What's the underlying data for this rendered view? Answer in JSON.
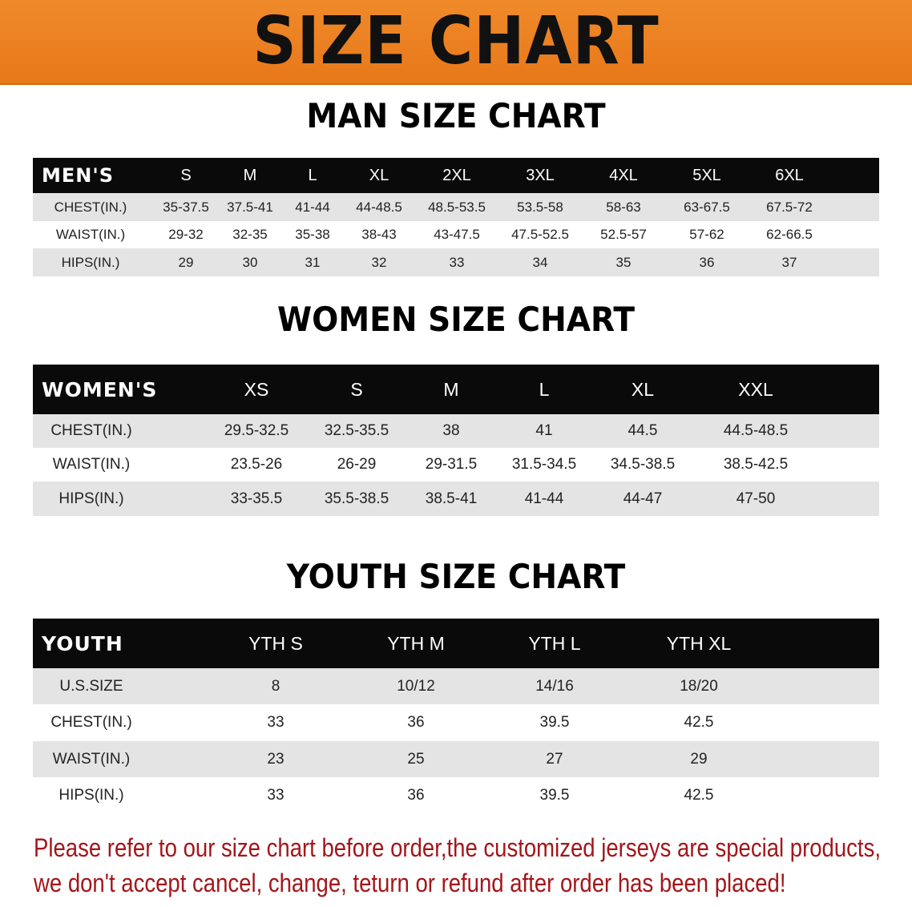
{
  "banner": {
    "title": "SIZE CHART",
    "color": "#ec8022"
  },
  "men": {
    "title": "MAN SIZE CHART",
    "corner": "MEN'S",
    "columns": [
      "S",
      "M",
      "L",
      "XL",
      "2XL",
      "3XL",
      "4XL",
      "5XL",
      "6XL"
    ],
    "rows": [
      {
        "label": "CHEST(IN.)",
        "values": [
          "35-37.5",
          "37.5-41",
          "41-44",
          "44-48.5",
          "48.5-53.5",
          "53.5-58",
          "58-63",
          "63-67.5",
          "67.5-72"
        ]
      },
      {
        "label": "WAIST(IN.)",
        "values": [
          "29-32",
          "32-35",
          "35-38",
          "38-43",
          "43-47.5",
          "47.5-52.5",
          "52.5-57",
          "57-62",
          "62-66.5"
        ]
      },
      {
        "label": "HIPS(IN.)",
        "values": [
          "29",
          "30",
          "31",
          "32",
          "33",
          "34",
          "35",
          "36",
          "37"
        ]
      }
    ]
  },
  "women": {
    "title": "WOMEN SIZE CHART",
    "corner": "WOMEN'S",
    "columns": [
      "XS",
      "S",
      "M",
      "L",
      "XL",
      "XXL"
    ],
    "rows": [
      {
        "label": "CHEST(IN.)",
        "values": [
          "29.5-32.5",
          "32.5-35.5",
          "38",
          "41",
          "44.5",
          "44.5-48.5"
        ]
      },
      {
        "label": "WAIST(IN.)",
        "values": [
          "23.5-26",
          "26-29",
          "29-31.5",
          "31.5-34.5",
          "34.5-38.5",
          "38.5-42.5"
        ]
      },
      {
        "label": "HIPS(IN.)",
        "values": [
          "33-35.5",
          "35.5-38.5",
          "38.5-41",
          "41-44",
          "44-47",
          "47-50"
        ]
      }
    ]
  },
  "youth": {
    "title": "YOUTH SIZE CHART",
    "corner": "YOUTH",
    "columns": [
      "YTH S",
      "YTH M",
      "YTH L",
      "YTH XL"
    ],
    "rows": [
      {
        "label": "U.S.SIZE",
        "values": [
          "8",
          "10/12",
          "14/16",
          "18/20"
        ]
      },
      {
        "label": "CHEST(IN.)",
        "values": [
          "33",
          "36",
          "39.5",
          "42.5"
        ]
      },
      {
        "label": "WAIST(IN.)",
        "values": [
          "23",
          "25",
          "27",
          "29"
        ]
      },
      {
        "label": "HIPS(IN.)",
        "values": [
          "33",
          "36",
          "39.5",
          "42.5"
        ]
      }
    ]
  },
  "notice": {
    "line1": "Please refer to our size chart before order,the customized jerseys are special products,",
    "line2": "we don't accept cancel, change, teturn or refund after order has been placed!",
    "color": "#a3161a"
  }
}
